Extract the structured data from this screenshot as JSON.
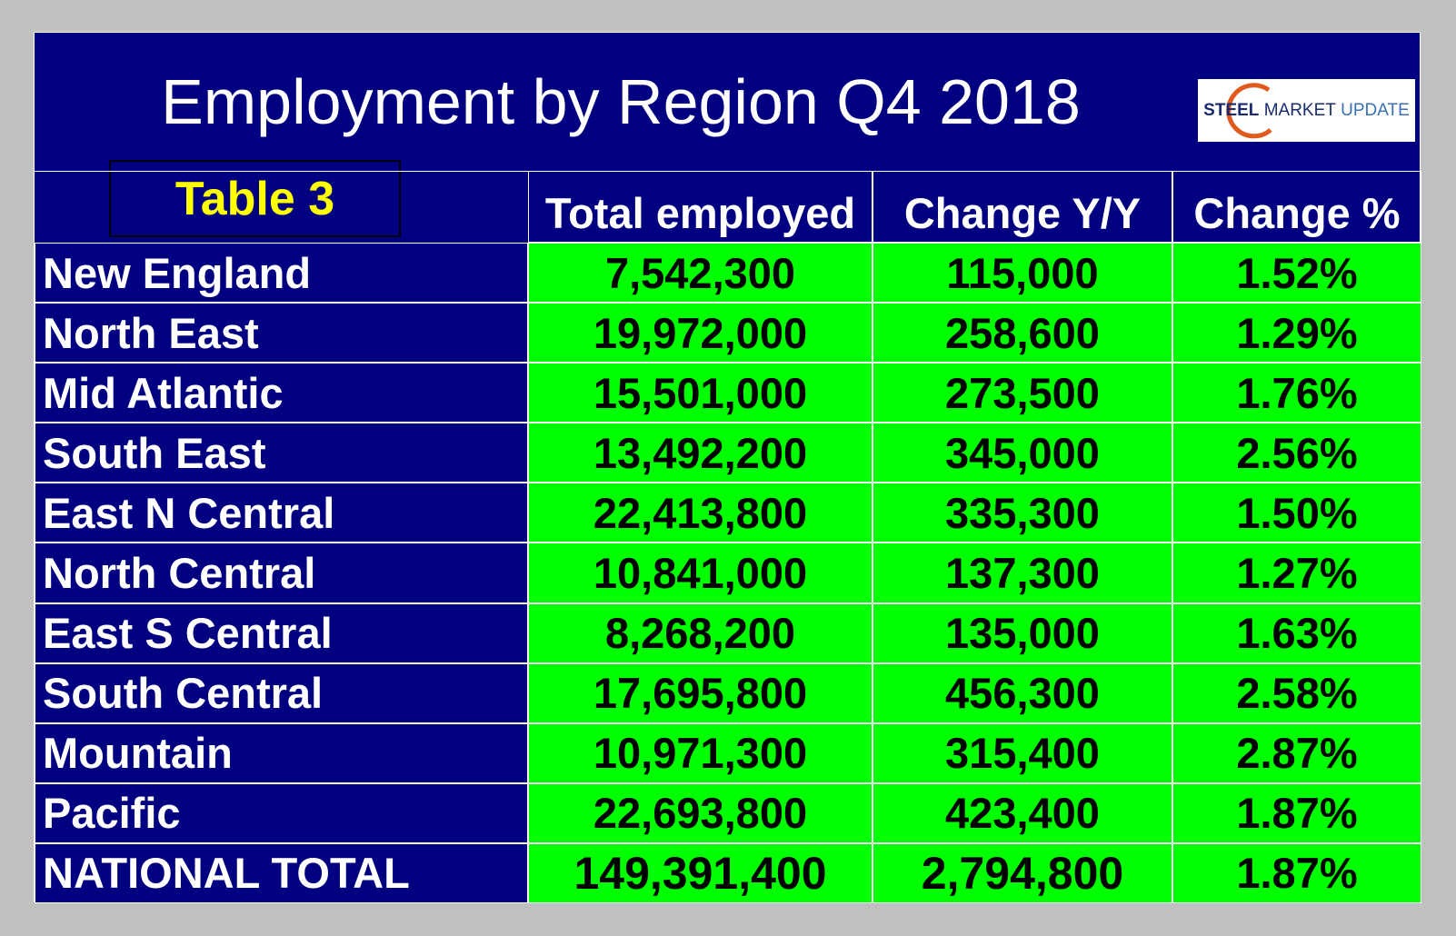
{
  "header": {
    "title": "Employment by Region Q4 2018",
    "table_label": "Table 3",
    "logo": [
      "STEEL",
      "MARKET",
      "UPDATE"
    ]
  },
  "table": {
    "columns": [
      "Total employed",
      "Change Y/Y",
      "Change %"
    ],
    "rows": [
      [
        "New England",
        "7,542,300",
        "115,000",
        "1.52%"
      ],
      [
        "North East",
        "19,972,000",
        "258,600",
        "1.29%"
      ],
      [
        "Mid Atlantic",
        "15,501,000",
        "273,500",
        "1.76%"
      ],
      [
        "South East",
        "13,492,200",
        "345,000",
        "2.56%"
      ],
      [
        "East N Central",
        "22,413,800",
        "335,300",
        "1.50%"
      ],
      [
        "North Central",
        "10,841,000",
        "137,300",
        "1.27%"
      ],
      [
        "East S Central",
        "8,268,200",
        "135,000",
        "1.63%"
      ],
      [
        "South Central",
        "17,695,800",
        "456,300",
        "2.58%"
      ],
      [
        "Mountain",
        "10,971,300",
        "315,400",
        "2.87%"
      ],
      [
        "Pacific",
        "22,693,800",
        "423,400",
        "1.87%"
      ],
      [
        "NATIONAL TOTAL",
        "149,391,400",
        "2,794,800",
        "1.87%"
      ]
    ]
  }
}
